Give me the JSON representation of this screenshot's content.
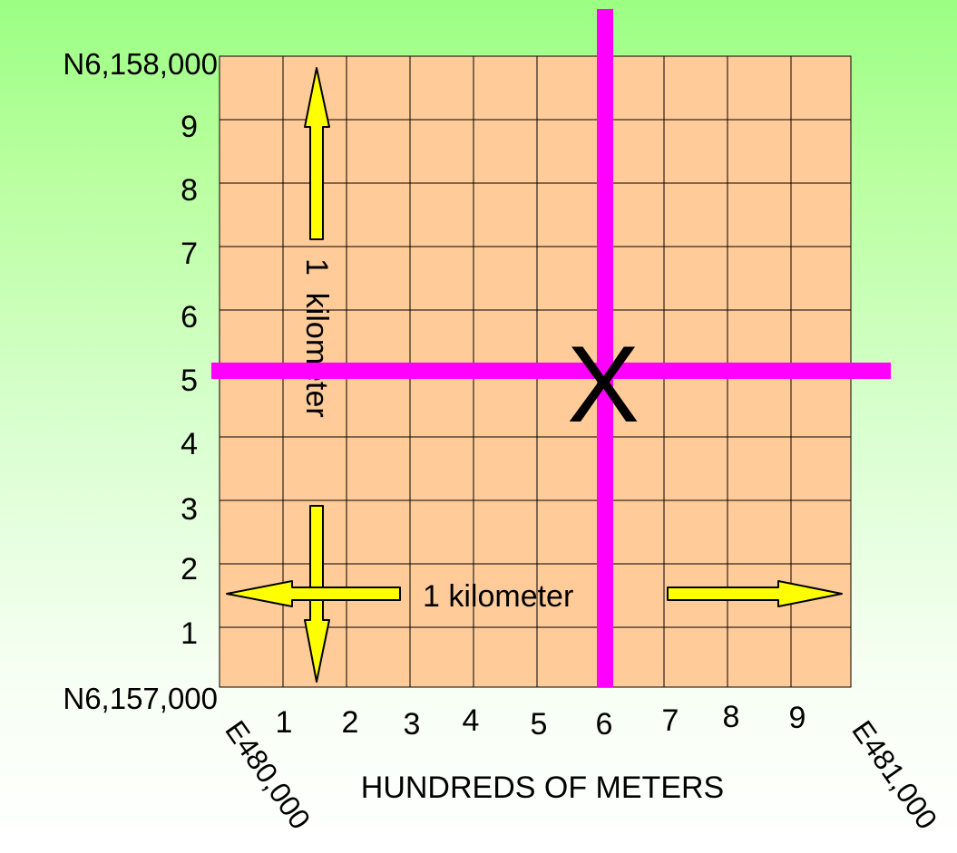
{
  "northing_labels": {
    "top": "N6,158,000",
    "bottom": "N6,157,000",
    "ticks": [
      "9",
      "8",
      "7",
      "6",
      "5",
      "4",
      "3",
      "2",
      "1"
    ]
  },
  "easting_labels": {
    "ticks": [
      "1",
      "2",
      "3",
      "4",
      "5",
      "6",
      "7",
      "8",
      "9"
    ],
    "left_corner": "E480,000",
    "right_corner": "E481,000",
    "axis_title": "HUNDREDS OF METERS"
  },
  "vertical_arrow_label": "1  kilometer",
  "horizontal_arrow_label": "1 kilometer",
  "point_marker": "X",
  "colors": {
    "background_top": "#9bff83",
    "background_bottom": "#ffffff",
    "grid_fill": "#ffcc99",
    "grid_line": "#000000",
    "crosshair": "#ff00ff",
    "arrow_fill": "#ffff00",
    "arrow_stroke": "#000000"
  }
}
